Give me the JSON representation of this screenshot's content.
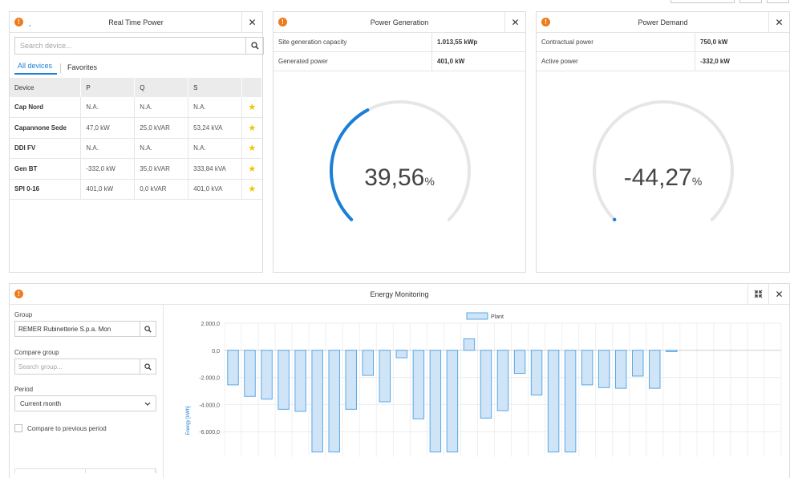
{
  "real_time_power": {
    "title": "Real Time Power",
    "warning_glyph": "!",
    "warning_extra": ",",
    "close": "✕",
    "search_placeholder": "Search device...",
    "tabs": [
      "All devices",
      "Favorites"
    ],
    "columns": [
      "Device",
      "P",
      "Q",
      "S"
    ],
    "rows": [
      {
        "device": "Cap Nord",
        "p": "N.A.",
        "q": "N.A.",
        "s": "N.A."
      },
      {
        "device": "Capannone Sede",
        "p": "47,0 kW",
        "q": "25,0 kVAR",
        "s": "53,24 kVA"
      },
      {
        "device": "DDI FV",
        "p": "N.A.",
        "q": "N.A.",
        "s": "N.A."
      },
      {
        "device": "Gen BT",
        "p": "-332,0 kW",
        "q": "35,0 kVAR",
        "s": "333,84 kVA"
      },
      {
        "device": "SPI 0-16",
        "p": "401,0 kW",
        "q": "0,0 kVAR",
        "s": "401,0 kVA"
      }
    ],
    "star_glyph": "★",
    "star_color": "#f2c200"
  },
  "power_generation": {
    "title": "Power Generation",
    "close": "✕",
    "rows": [
      {
        "label": "Site generation capacity",
        "value": "1.013,55 kWp"
      },
      {
        "label": "Generated power",
        "value": "401,0 kW"
      }
    ],
    "gauge_value": "39,56",
    "gauge_unit": "%",
    "gauge_fraction": 0.3956
  },
  "power_demand": {
    "title": "Power Demand",
    "close": "✕",
    "rows": [
      {
        "label": "Contractual power",
        "value": "750,0 kW"
      },
      {
        "label": "Active power",
        "value": "-332,0 kW"
      }
    ],
    "gauge_value": "-44,27",
    "gauge_unit": "%",
    "gauge_fraction": 0
  },
  "energy_monitoring": {
    "title": "Energy Monitoring",
    "collapse_icon": "compress-icon",
    "close": "✕",
    "group_label": "Group",
    "group_value": "REMER Rubinetterie S.p.a. Mon",
    "compare_label": "Compare group",
    "compare_placeholder": "Search group...",
    "period_label": "Period",
    "period_value": "Current month",
    "compare_prev_label": "Compare to previous period"
  },
  "colors": {
    "accent": "#1b7fd6",
    "warning": "#ee7b1c",
    "bar_fill": "#cfe5f7",
    "bar_stroke": "#5aa7e6",
    "gauge_track": "#e6e6e6"
  },
  "chart_data": {
    "type": "bar",
    "legend": [
      "Plant"
    ],
    "legend_position": "top-center",
    "ylabel": "Energy [kWh]",
    "y_ticks": [
      "2.000,0",
      "0,0",
      "-2.000,0",
      "-4.000,0",
      "-6.000,0"
    ],
    "y_tick_values": [
      2000,
      0,
      -2000,
      -4000,
      -6000
    ],
    "ylim": [
      -7500,
      2000
    ],
    "grid": true,
    "series": [
      {
        "name": "Plant",
        "values": [
          -2550,
          -3400,
          -3600,
          -4350,
          -4500,
          -7500,
          -7500,
          -4350,
          -1850,
          -3800,
          -550,
          -5050,
          -7500,
          -7500,
          850,
          -5000,
          -4450,
          -1700,
          -3300,
          -7500,
          -7500,
          -2550,
          -2750,
          -2800,
          -1900,
          -2800,
          -100,
          0,
          0,
          0,
          0,
          0,
          0
        ]
      }
    ]
  }
}
